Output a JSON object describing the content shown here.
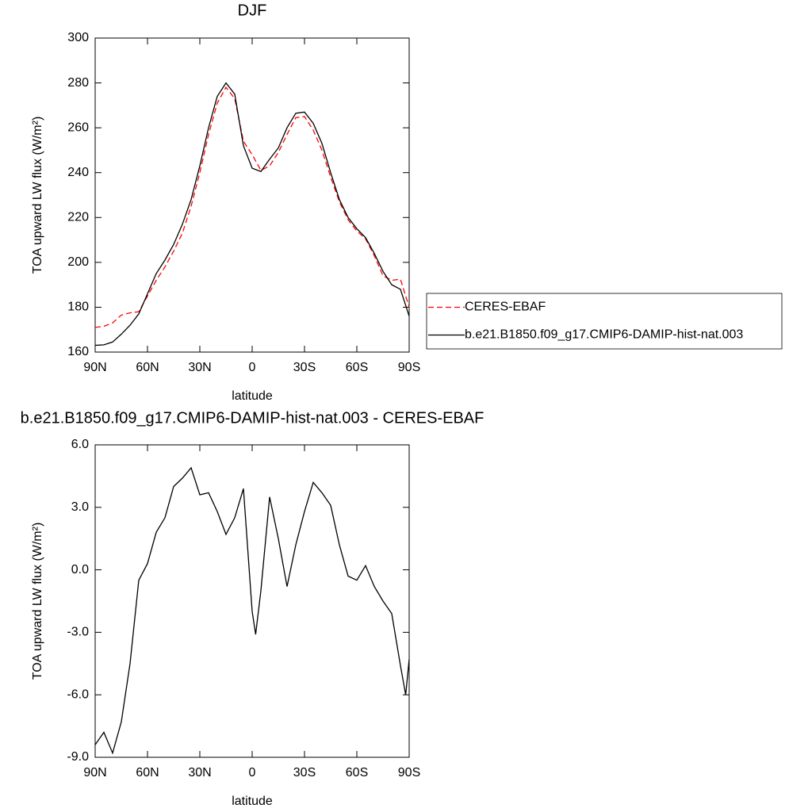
{
  "chart_data": [
    {
      "type": "line",
      "title": "DJF",
      "xlabel": "latitude",
      "ylabel": "TOA upward LW flux (W/m²)",
      "x": [
        90,
        85,
        80,
        75,
        70,
        65,
        60,
        55,
        50,
        45,
        40,
        35,
        30,
        25,
        20,
        15,
        10,
        5,
        0,
        -5,
        -10,
        -15,
        -20,
        -25,
        -30,
        -35,
        -40,
        -45,
        -50,
        -55,
        -60,
        -65,
        -70,
        -75,
        -80,
        -85,
        -90
      ],
      "series": [
        {
          "name": "CERES-EBAF",
          "color": "#ff0000",
          "linestyle": "dashed",
          "values": [
            171,
            171.5,
            173,
            176.5,
            177.5,
            178,
            185,
            192,
            198,
            205,
            213,
            225,
            240,
            257,
            271,
            278,
            273,
            254,
            248,
            241,
            243,
            249,
            257,
            264.5,
            265,
            259,
            250,
            238,
            227,
            219,
            214,
            210.5,
            203,
            194,
            192,
            192.5,
            180
          ]
        },
        {
          "name": "b.e21.B1850.f09_g17.CMIP6-DAMIP-hist-nat.003",
          "color": "#000000",
          "linestyle": "solid",
          "values": [
            163,
            163.2,
            164.5,
            168,
            172,
            177,
            186,
            195,
            201,
            208,
            217,
            228,
            243,
            260,
            274,
            280,
            275,
            252,
            242,
            240.5,
            246,
            251,
            260,
            266.5,
            267,
            262,
            253,
            240,
            228,
            220,
            215,
            211,
            204,
            196,
            190,
            188,
            176
          ]
        }
      ],
      "xlim": [
        90,
        -90
      ],
      "xticks": [
        {
          "value": 90,
          "label": "90N"
        },
        {
          "value": 60,
          "label": "60N"
        },
        {
          "value": 30,
          "label": "30N"
        },
        0,
        {
          "value": -30,
          "label": "30S"
        },
        {
          "value": -60,
          "label": "60S"
        },
        {
          "value": -90,
          "label": "90S"
        }
      ],
      "ylim": [
        160,
        300
      ],
      "yticks": [
        160,
        180,
        200,
        220,
        240,
        260,
        280,
        300
      ],
      "legend": "right"
    },
    {
      "type": "line",
      "title": "b.e21.B1850.f09_g17.CMIP6-DAMIP-hist-nat.003 - CERES-EBAF",
      "xlabel": "latitude",
      "ylabel": "TOA upward LW flux (W/m²)",
      "x": [
        90,
        85,
        80,
        75,
        70,
        65,
        60,
        55,
        50,
        45,
        40,
        35,
        30,
        25,
        20,
        15,
        10,
        5,
        0,
        -2,
        -5,
        -10,
        -15,
        -20,
        -25,
        -30,
        -35,
        -40,
        -45,
        -50,
        -55,
        -60,
        -65,
        -70,
        -75,
        -80,
        -85,
        -88,
        -90
      ],
      "values": [
        -8.4,
        -7.8,
        -8.8,
        -7.3,
        -4.5,
        -0.5,
        0.3,
        1.8,
        2.5,
        4.0,
        4.4,
        4.9,
        3.6,
        3.7,
        2.8,
        1.7,
        2.5,
        3.9,
        -2.0,
        -3.1,
        -1.0,
        3.5,
        1.5,
        -0.8,
        1.2,
        2.8,
        4.2,
        3.7,
        3.1,
        1.2,
        -0.3,
        -0.5,
        0.2,
        -0.8,
        -1.5,
        -2.1,
        -4.6,
        -6.0,
        -4.3
      ],
      "color": "#000000",
      "xlim": [
        90,
        -90
      ],
      "xticks": [
        {
          "value": 90,
          "label": "90N"
        },
        {
          "value": 60,
          "label": "60N"
        },
        {
          "value": 30,
          "label": "30N"
        },
        0,
        {
          "value": -30,
          "label": "30S"
        },
        {
          "value": -60,
          "label": "60S"
        },
        {
          "value": -90,
          "label": "90S"
        }
      ],
      "ylim": [
        -9,
        6
      ],
      "yticks": [
        {
          "value": 6,
          "label": "6.0"
        },
        {
          "value": 3,
          "label": "3.0"
        },
        {
          "value": 0,
          "label": "0.0"
        },
        {
          "value": -3,
          "label": "-3.0"
        },
        {
          "value": -6,
          "label": "-6.0"
        },
        {
          "value": -9,
          "label": "-9.0"
        }
      ]
    }
  ]
}
